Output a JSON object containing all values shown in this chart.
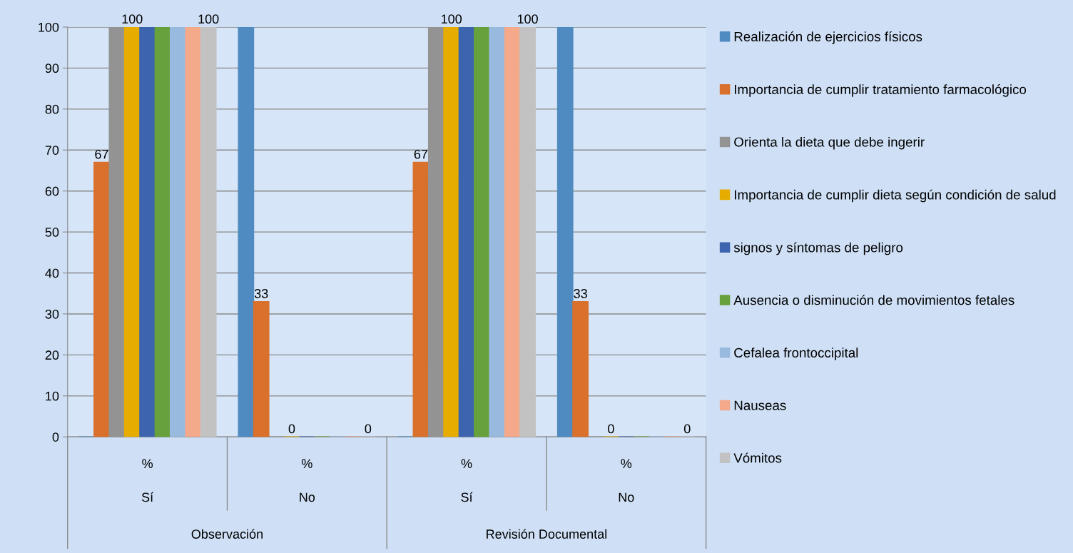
{
  "chart_data": {
    "type": "bar",
    "categories": [
      "%",
      "%",
      "%",
      "%"
    ],
    "annotations": [
      "Sí",
      "No",
      "Sí",
      "No",
      "Observación",
      "Revisión Documental"
    ],
    "ylim": [
      0,
      100
    ],
    "yticks": [
      0,
      10,
      20,
      30,
      40,
      50,
      60,
      70,
      80,
      90,
      100
    ],
    "grid": "y",
    "legend": "right",
    "series": [
      {
        "name": "Realización de ejercicios físicos",
        "color": "#4f8bc0",
        "values": [
          0,
          100,
          0,
          100
        ]
      },
      {
        "name": "Importancia de cumplir tratamiento farmacológico",
        "color": "#d9702c",
        "values": [
          67,
          33,
          67,
          33
        ],
        "value_labels": [
          "67",
          "33",
          "67",
          "33"
        ]
      },
      {
        "name": "Orienta la dieta que debe ingerir",
        "color": "#939393",
        "values": [
          100,
          0,
          100,
          0
        ]
      },
      {
        "name": "Importancia de cumplir dieta según condición de salud",
        "color": "#e6ad00",
        "values": [
          100,
          0,
          100,
          0
        ],
        "value_labels": [
          "100",
          "0",
          "100",
          "0"
        ]
      },
      {
        "name": "signos y síntomas de peligro",
        "color": "#3d64ae",
        "values": [
          100,
          0,
          100,
          0
        ]
      },
      {
        "name": "Ausencia o disminución de movimientos fetales",
        "color": "#67a13e",
        "values": [
          100,
          0,
          100,
          0
        ]
      },
      {
        "name": "Cefalea frontoccipital",
        "color": "#98badf",
        "values": [
          100,
          0,
          100,
          0
        ]
      },
      {
        "name": "Nauseas",
        "color": "#f3a98a",
        "values": [
          100,
          0,
          100,
          0
        ]
      },
      {
        "name": "Vómitos",
        "color": "#c2c2c2",
        "values": [
          100,
          0,
          100,
          0
        ],
        "value_labels": [
          "100",
          "0",
          "100",
          "0"
        ]
      }
    ]
  }
}
